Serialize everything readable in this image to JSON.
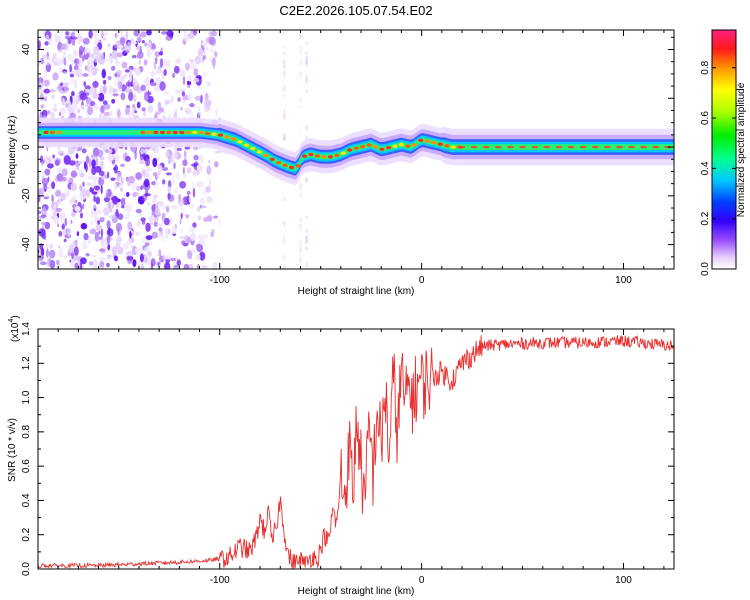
{
  "figure_title": "C2E2.2026.105.07.54.E02",
  "chart_data": [
    {
      "type": "heatmap",
      "title": "C2E2.2026.105.07.54.E02",
      "xlabel": "Height of straight line (km)",
      "ylabel": "Frequency (Hz)",
      "xlim": [
        -190,
        125
      ],
      "ylim": [
        -50,
        48
      ],
      "x_ticks": [
        -100,
        0,
        100
      ],
      "x_tick_labels": [
        "-100",
        "0",
        "100"
      ],
      "y_ticks": [
        -40,
        -20,
        0,
        20,
        40
      ],
      "y_tick_labels": [
        "-40",
        "-20",
        "0",
        "20",
        "40"
      ],
      "ridge": {
        "description": "dominant spectral line (frequency vs height)",
        "x": [
          -185,
          -170,
          -150,
          -133,
          -120,
          -110,
          -100,
          -92,
          -85,
          -78,
          -72,
          -66,
          -62,
          -59,
          -55,
          -50,
          -45,
          -40,
          -35,
          -30,
          -25,
          -20,
          -15,
          -10,
          -5,
          0,
          5,
          10,
          15,
          30,
          50,
          75,
          100,
          125
        ],
        "y": [
          6,
          6,
          6,
          6,
          6,
          6,
          5,
          3,
          0,
          -3,
          -6,
          -8,
          -9,
          -4,
          -3,
          -4,
          -4,
          -3,
          -1,
          0,
          1,
          -1,
          0,
          1,
          0,
          3,
          2,
          1,
          0,
          0,
          0,
          0,
          0,
          0
        ]
      },
      "colorbar": {
        "label": "Normalized spectral amplitude",
        "range": [
          0,
          0.95
        ],
        "ticks": [
          0.0,
          0.2,
          0.4,
          0.6,
          0.8
        ],
        "tick_labels": [
          "0.0",
          "0.2",
          "0.4",
          "0.6",
          "0.8"
        ]
      }
    },
    {
      "type": "line",
      "xlabel": "Height of straight line (km)",
      "ylabel": "SNR (10 * v/v)",
      "scale_label": "(x10",
      "scale_exponent": "4",
      "xlim": [
        -190,
        125
      ],
      "ylim": [
        0,
        1.4
      ],
      "x_ticks": [
        -100,
        0,
        100
      ],
      "x_tick_labels": [
        "-100",
        "0",
        "100"
      ],
      "y_ticks": [
        0.0,
        0.2,
        0.4,
        0.6,
        0.8,
        1.0,
        1.2,
        1.4
      ],
      "y_tick_labels": [
        "0.0",
        "0.2",
        "0.4",
        "0.6",
        "0.8",
        "1.0",
        "1.2",
        "1.4"
      ],
      "series": [
        {
          "name": "SNR",
          "color": "#e8302f",
          "x": [
            -190,
            -160,
            -140,
            -120,
            -105,
            -95,
            -90,
            -85,
            -82,
            -80,
            -78,
            -76,
            -74,
            -72,
            -70,
            -68,
            -66,
            -64,
            -62,
            -60,
            -58,
            -56,
            -54,
            -52,
            -50,
            -48,
            -46,
            -44,
            -42,
            -40,
            -38,
            -36,
            -34,
            -32,
            -30,
            -28,
            -26,
            -24,
            -22,
            -20,
            -18,
            -16,
            -14,
            -12,
            -10,
            -8,
            -6,
            -4,
            -2,
            0,
            5,
            10,
            15,
            20,
            25,
            30,
            40,
            60,
            80,
            100,
            125
          ],
          "y": [
            0.02,
            0.02,
            0.03,
            0.04,
            0.05,
            0.07,
            0.13,
            0.1,
            0.18,
            0.3,
            0.22,
            0.33,
            0.15,
            0.25,
            0.4,
            0.22,
            0.08,
            0.04,
            0.03,
            0.06,
            0.02,
            0.05,
            0.08,
            0.05,
            0.12,
            0.2,
            0.15,
            0.35,
            0.25,
            0.55,
            0.42,
            0.72,
            0.45,
            0.9,
            0.6,
            0.35,
            0.85,
            0.55,
            0.95,
            0.7,
            1.05,
            0.65,
            1.12,
            0.8,
            1.15,
            0.95,
            1.08,
            0.98,
            1.1,
            1.08,
            1.12,
            1.15,
            1.1,
            1.2,
            1.25,
            1.3,
            1.31,
            1.32,
            1.32,
            1.33,
            1.3
          ]
        }
      ]
    }
  ]
}
